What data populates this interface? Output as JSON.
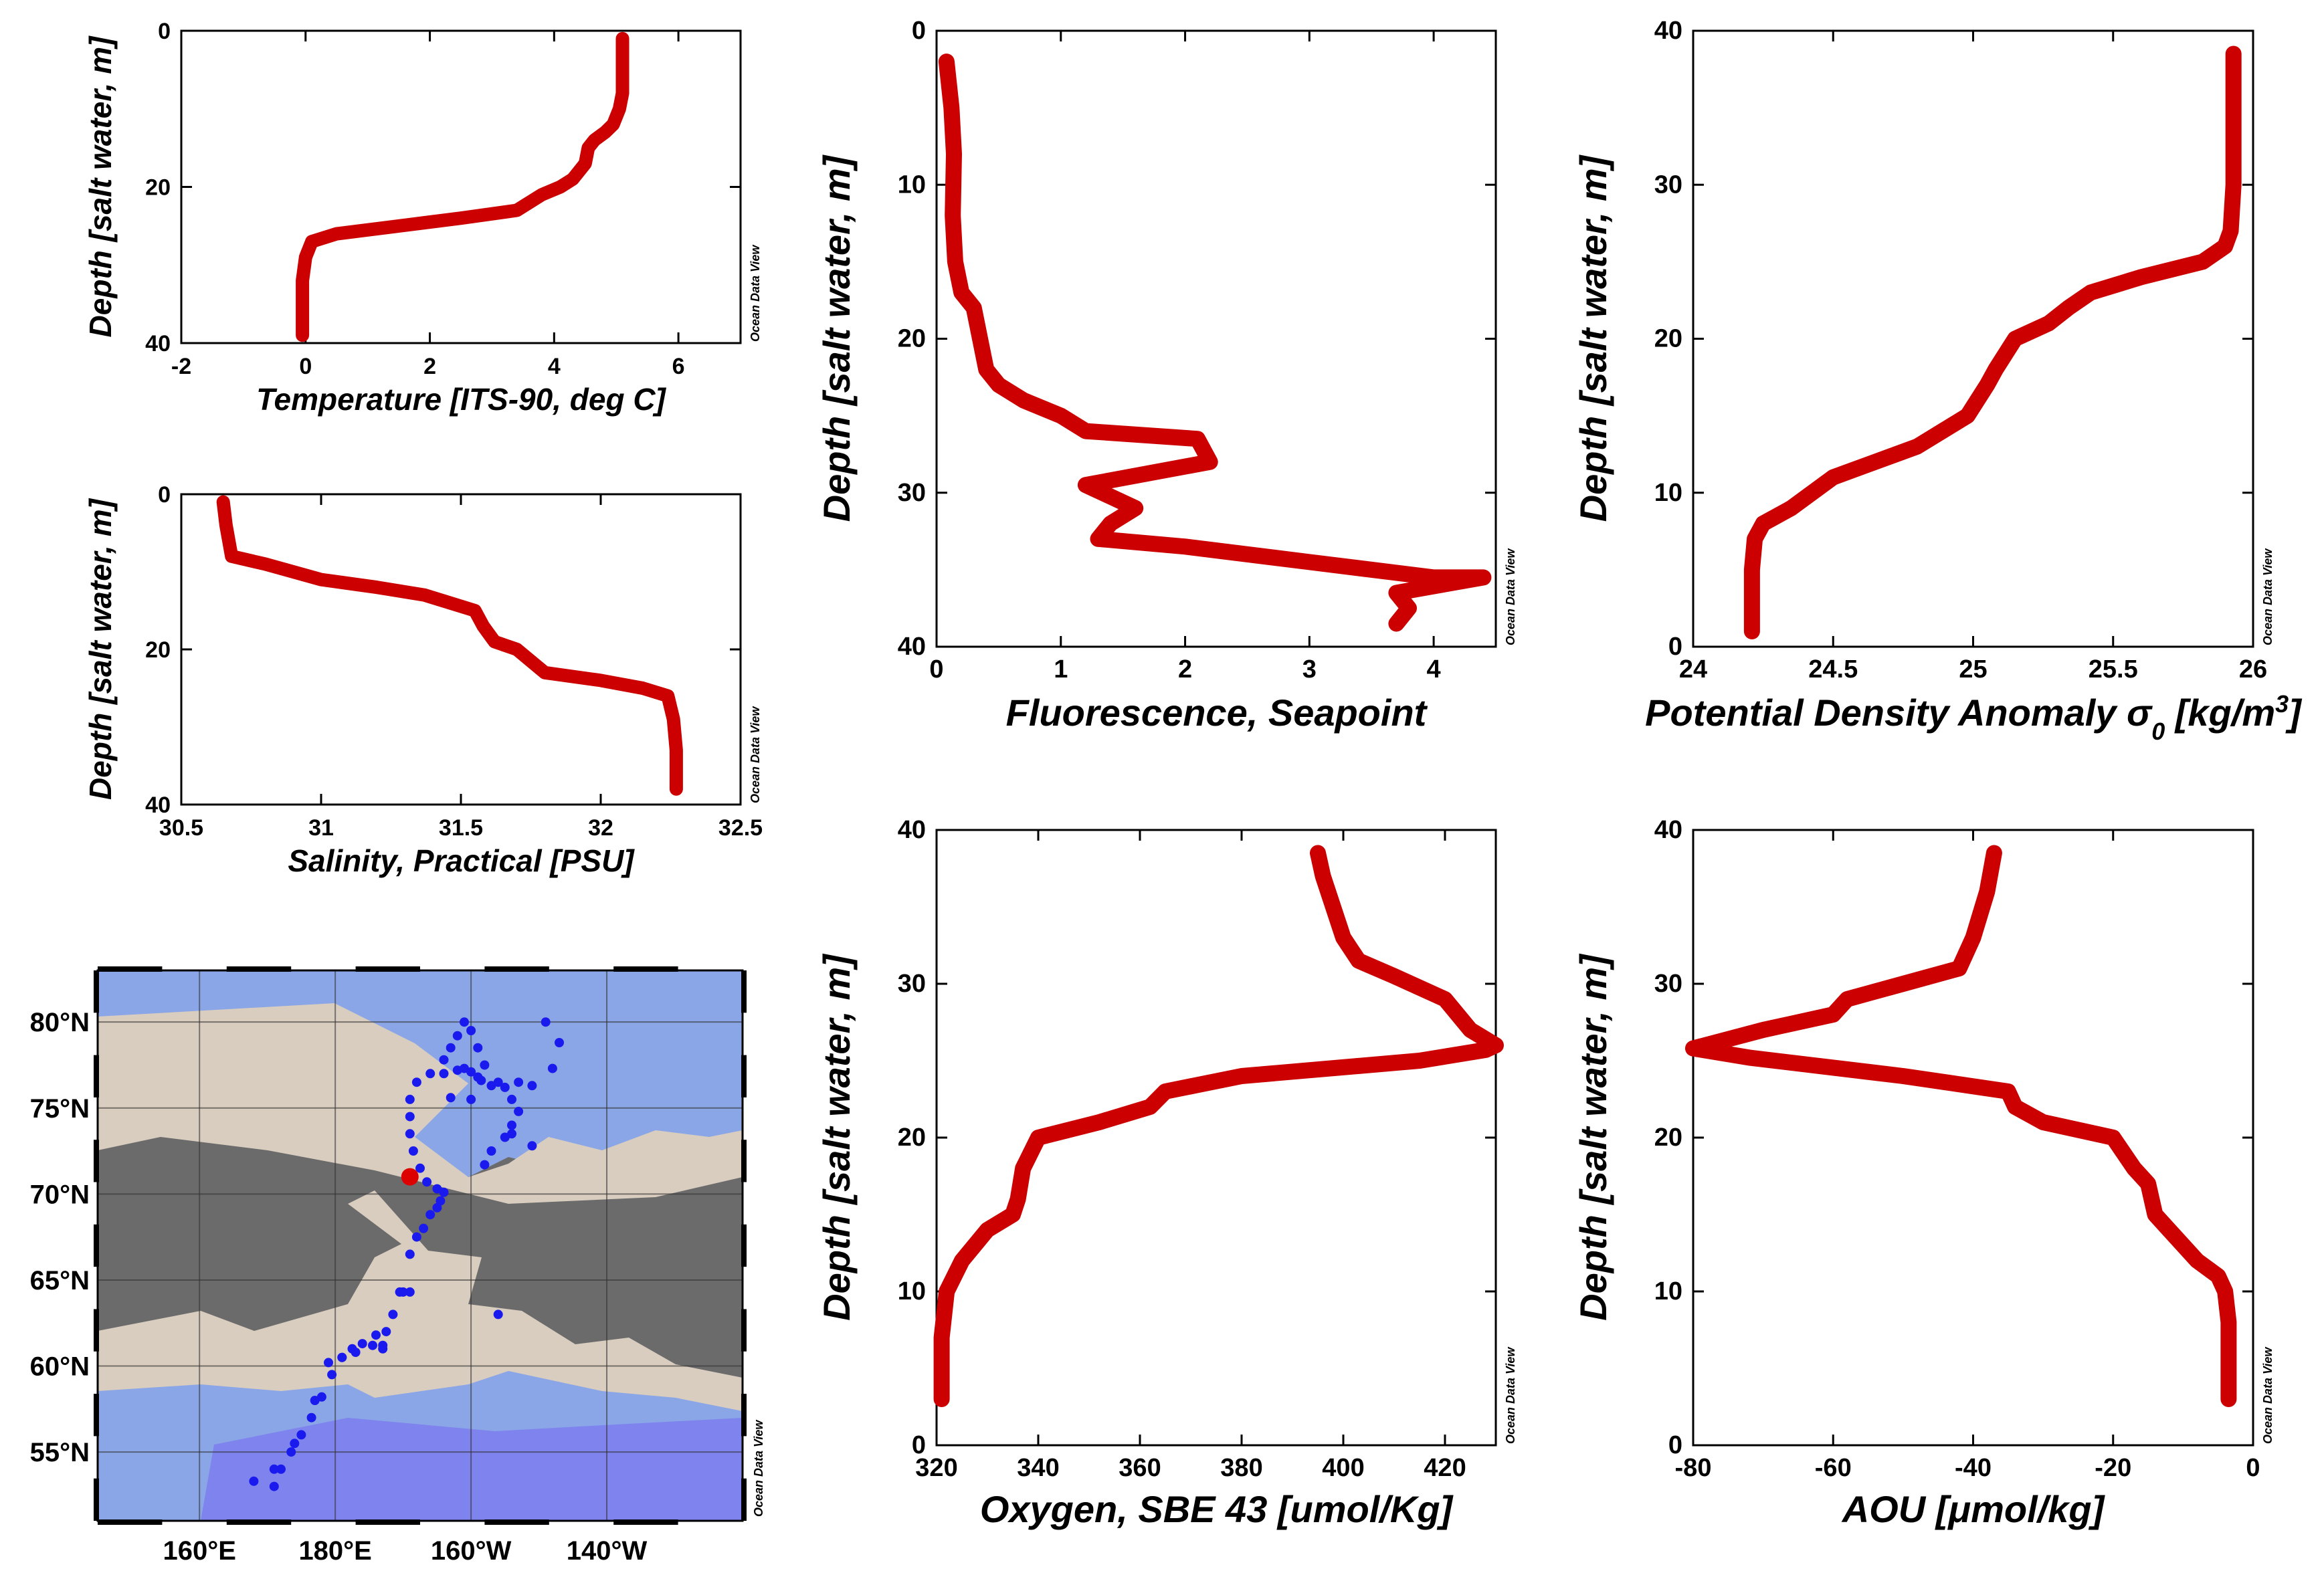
{
  "credit_text": "Ocean Data View",
  "colors": {
    "profile_line": "#cc0000",
    "station_track": "#1a1aee",
    "current_station": "#dd0000",
    "land": "#6b6b6b",
    "shelf": "#d9cdbf",
    "ocean": "#8aa6e6",
    "deep_ocean": "#7d7dee"
  },
  "chart_data": [
    {
      "id": "temperature",
      "type": "line",
      "xlabel": "Temperature [ITS-90, deg C]",
      "ylabel": "Depth [salt water, m]",
      "xlim": [
        -2,
        7
      ],
      "ylim": [
        40,
        0
      ],
      "xticks": [
        -2,
        0,
        2,
        4,
        6
      ],
      "yticks": [
        0,
        20,
        40
      ],
      "series": [
        {
          "x": [
            5.1,
            5.1,
            5.1,
            5.05,
            4.95,
            4.82,
            4.65,
            4.55,
            4.5,
            4.3,
            4.1,
            3.8,
            3.4,
            2.5,
            1.5,
            0.5,
            0.1,
            0.0,
            -0.05,
            -0.05,
            -0.05
          ],
          "y": [
            1,
            5,
            8,
            10,
            12,
            13,
            14,
            15,
            17,
            19,
            20,
            21,
            23,
            24,
            25,
            26,
            27,
            29,
            32,
            36,
            39
          ]
        }
      ]
    },
    {
      "id": "salinity",
      "type": "line",
      "xlabel": "Salinity, Practical [PSU]",
      "ylabel": "Depth [salt water, m]",
      "xlim": [
        30.5,
        32.5
      ],
      "ylim": [
        40,
        0
      ],
      "xticks": [
        30.5,
        31,
        31.5,
        32,
        32.5
      ],
      "yticks": [
        0,
        20,
        40
      ],
      "series": [
        {
          "x": [
            30.65,
            30.66,
            30.68,
            30.8,
            31.0,
            31.2,
            31.37,
            31.55,
            31.58,
            31.62,
            31.7,
            31.8,
            32.0,
            32.15,
            32.24,
            32.26,
            32.27,
            32.27
          ],
          "y": [
            1,
            4,
            8,
            9,
            11,
            12,
            13,
            15,
            17,
            19,
            20,
            23,
            24,
            25,
            26,
            29,
            33,
            38
          ]
        }
      ]
    },
    {
      "id": "fluorescence",
      "type": "line",
      "xlabel": "Fluorescence, Seapoint",
      "ylabel": "Depth [salt water, m]",
      "xlim": [
        0,
        4.5
      ],
      "ylim": [
        40,
        0
      ],
      "xticks": [
        0,
        1,
        2,
        3,
        4
      ],
      "yticks": [
        0,
        10,
        20,
        30,
        40
      ],
      "series": [
        {
          "x": [
            0.08,
            0.12,
            0.14,
            0.13,
            0.15,
            0.2,
            0.3,
            0.35,
            0.4,
            0.5,
            0.7,
            1.0,
            1.2,
            2.1,
            2.2,
            1.2,
            1.6,
            1.4,
            1.3,
            2.0,
            3.0,
            4.0,
            4.4,
            3.7,
            3.8,
            3.7
          ],
          "y": [
            2,
            5,
            8,
            12,
            15,
            17,
            18,
            20,
            22,
            23,
            24,
            25,
            26,
            26.5,
            28,
            29.5,
            31,
            32,
            33,
            33.5,
            34.5,
            35.5,
            35.5,
            36.5,
            37.5,
            38.5
          ]
        }
      ]
    },
    {
      "id": "density",
      "type": "line",
      "xlabel": "Potential Density Anomaly σ0 [kg/m3]",
      "ylabel": "Depth [salt water, m]",
      "xlim": [
        24,
        26
      ],
      "ylim": [
        0,
        40
      ],
      "xticks": [
        "24",
        "24.5",
        "25",
        "25.5",
        "26"
      ],
      "yticks": [
        0,
        10,
        20,
        30,
        40
      ],
      "series": [
        {
          "x": [
            24.21,
            24.21,
            24.21,
            24.22,
            24.25,
            24.35,
            24.5,
            24.8,
            24.98,
            25.05,
            25.08,
            25.15,
            25.27,
            25.34,
            25.42,
            25.6,
            25.82,
            25.9,
            25.92,
            25.93,
            25.93,
            25.93
          ],
          "y": [
            1,
            3,
            5,
            7,
            8,
            9,
            11,
            13,
            15,
            17,
            18,
            20,
            21,
            22,
            23,
            24,
            25,
            26,
            27,
            30,
            35,
            38.5
          ]
        }
      ]
    },
    {
      "id": "oxygen",
      "type": "line",
      "xlabel": "Oxygen, SBE 43 [umol/Kg]",
      "ylabel": "Depth [salt water, m]",
      "xlim": [
        320,
        430
      ],
      "ylim": [
        0,
        40
      ],
      "xticks": [
        320,
        340,
        360,
        380,
        400,
        420
      ],
      "yticks": [
        0,
        10,
        20,
        30,
        40
      ],
      "series": [
        {
          "x": [
            321,
            321,
            322,
            325,
            330,
            335,
            336,
            337,
            340,
            352,
            362,
            365,
            380,
            415,
            428,
            430,
            425,
            420,
            410,
            403,
            400,
            398,
            396,
            395
          ],
          "y": [
            3,
            7,
            10,
            12,
            14,
            15,
            16,
            18,
            20,
            21,
            22,
            23,
            24,
            25,
            25.7,
            26,
            27,
            29,
            30.5,
            31.5,
            33,
            35,
            37,
            38.5
          ]
        }
      ]
    },
    {
      "id": "aou",
      "type": "line",
      "xlabel": "AOU [μmol/kg]",
      "ylabel": "Depth [salt water, m]",
      "xlim": [
        -80,
        0
      ],
      "ylim": [
        0,
        40
      ],
      "xticks": [
        -80,
        -60,
        -40,
        -20,
        0
      ],
      "yticks": [
        0,
        10,
        20,
        30,
        40
      ],
      "series": [
        {
          "x": [
            -3.5,
            -3.5,
            -3.5,
            -4,
            -5,
            -8,
            -12,
            -14,
            -15,
            -17,
            -20,
            -30,
            -34,
            -35,
            -50,
            -72,
            -80,
            -70,
            -60,
            -58,
            -50,
            -42,
            -40,
            -38,
            -37
          ],
          "y": [
            3,
            5,
            8,
            10,
            11,
            12,
            14,
            15,
            17,
            18,
            20,
            21,
            22,
            23,
            24,
            25.2,
            25.8,
            27,
            28,
            29,
            30,
            31,
            33,
            36,
            38.5
          ]
        }
      ]
    },
    {
      "id": "station-map",
      "type": "scatter",
      "xlabel": "",
      "ylabel": "",
      "lon_ticks": [
        "160°E",
        "180°E",
        "160°W",
        "140°W"
      ],
      "lat_ticks": [
        "80°N",
        "75°N",
        "70°N",
        "65°N",
        "60°N",
        "55°N"
      ],
      "xlim": [
        145,
        240
      ],
      "ylim": [
        51,
        83
      ],
      "selected_station": {
        "lon": 191,
        "lat": 71
      },
      "stations": {
        "lon": [
          171,
          172,
          173.5,
          175,
          176.5,
          178,
          179.5,
          181,
          182.5,
          184,
          185.5,
          187,
          187.5,
          188.5,
          189.5,
          190,
          191,
          191,
          192,
          193,
          194,
          195,
          195.5,
          196,
          195,
          193.5,
          192.5,
          191.5,
          191,
          191,
          191,
          192,
          194,
          196,
          197,
          198,
          199,
          200,
          201,
          202,
          204,
          206,
          207,
          206,
          205,
          203,
          202,
          200,
          197,
          196,
          198,
          199,
          200,
          201,
          201.5,
          203,
          205,
          207,
          209,
          212,
          213,
          211,
          209,
          206,
          204,
          186,
          187,
          183,
          181,
          179,
          177,
          174,
          171,
          168
        ],
        "lat": [
          53,
          54,
          55,
          56,
          57,
          58.2,
          59.5,
          60.5,
          61,
          61.3,
          61.2,
          61,
          62,
          63,
          64.3,
          64.3,
          64.3,
          66.5,
          67.5,
          68,
          68.8,
          69.2,
          69.6,
          70.1,
          70.3,
          70.7,
          71.5,
          72.5,
          73.5,
          74.5,
          75.5,
          76.5,
          77,
          77.8,
          78.5,
          79.2,
          80,
          79.5,
          78.5,
          77.5,
          76.5,
          75.5,
          74.8,
          74,
          73.3,
          72.5,
          71.7,
          75.5,
          75.6,
          77,
          77.2,
          77.3,
          77.1,
          76.8,
          76.6,
          76.3,
          76.2,
          76.5,
          76.3,
          77.3,
          78.8,
          80,
          72.8,
          73.5,
          63,
          61.8,
          61.2,
          60.8,
          60.5,
          60.2,
          58,
          55.5,
          54,
          53.3
        ]
      }
    }
  ]
}
